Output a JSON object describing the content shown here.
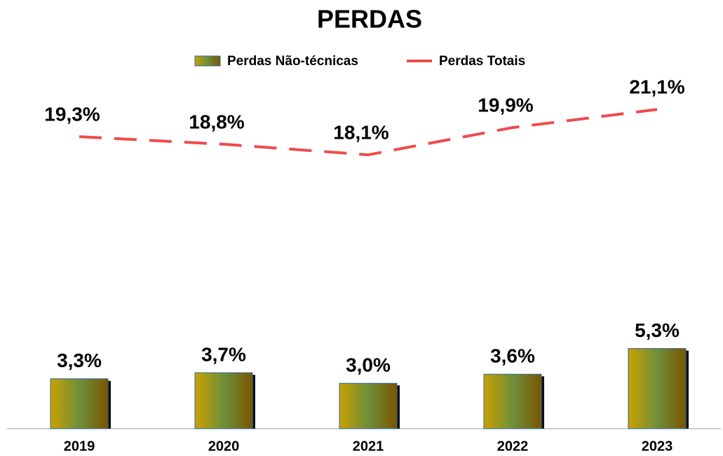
{
  "chart_data": {
    "type": "bar-line",
    "title": "PERDAS",
    "categories": [
      "2019",
      "2020",
      "2021",
      "2022",
      "2023"
    ],
    "series": [
      {
        "name": "Perdas Não-técnicas",
        "type": "bar",
        "color": "#6f8f3a",
        "values": [
          3.3,
          3.7,
          3.0,
          3.6,
          5.3
        ],
        "value_labels": [
          "3,3%",
          "3,7%",
          "3,0%",
          "3,6%",
          "5,3%"
        ]
      },
      {
        "name": "Perdas Totais",
        "type": "line",
        "color": "#ef4b4b",
        "values": [
          19.3,
          18.8,
          18.1,
          19.9,
          21.1
        ],
        "value_labels": [
          "19,3%",
          "18,8%",
          "18,1%",
          "19,9%",
          "21,1%"
        ]
      }
    ],
    "ylim": [
      0,
      24
    ],
    "legend": "top"
  }
}
